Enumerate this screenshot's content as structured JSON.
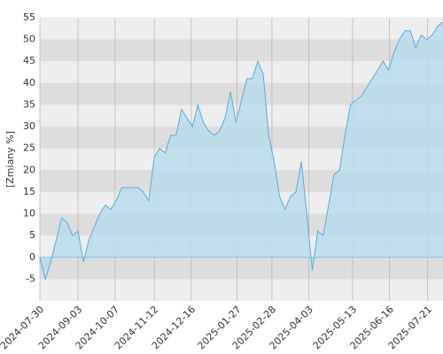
{
  "chart_data": {
    "type": "area",
    "y_label": "[Zmiany %]",
    "color": "#5aaae0",
    "fill": "#b7dcec",
    "band_colors": [
      "#eeeeee",
      "#dddddd"
    ],
    "x": [
      "2024-07-30",
      "2024-08-04",
      "2024-08-09",
      "2024-08-14",
      "2024-08-19",
      "2024-08-24",
      "2024-08-29",
      "2024-09-03",
      "2024-09-08",
      "2024-09-13",
      "2024-09-18",
      "2024-09-23",
      "2024-09-28",
      "2024-10-03",
      "2024-10-08",
      "2024-10-13",
      "2024-10-18",
      "2024-10-23",
      "2024-10-28",
      "2024-11-02",
      "2024-11-07",
      "2024-11-12",
      "2024-11-17",
      "2024-11-22",
      "2024-11-27",
      "2024-12-02",
      "2024-12-07",
      "2024-12-12",
      "2024-12-17",
      "2024-12-22",
      "2024-12-27",
      "2025-01-01",
      "2025-01-06",
      "2025-01-11",
      "2025-01-16",
      "2025-01-21",
      "2025-01-26",
      "2025-01-31",
      "2025-02-05",
      "2025-02-10",
      "2025-02-15",
      "2025-02-20",
      "2025-02-25",
      "2025-03-02",
      "2025-03-07",
      "2025-03-12",
      "2025-03-17",
      "2025-03-22",
      "2025-03-27",
      "2025-04-01",
      "2025-04-06",
      "2025-04-11",
      "2025-04-16",
      "2025-04-21",
      "2025-04-26",
      "2025-05-01",
      "2025-05-06",
      "2025-05-11",
      "2025-05-16",
      "2025-05-21",
      "2025-05-26",
      "2025-05-31",
      "2025-06-05",
      "2025-06-10",
      "2025-06-15",
      "2025-06-20",
      "2025-06-25",
      "2025-06-30",
      "2025-07-05",
      "2025-07-10",
      "2025-07-15",
      "2025-07-20",
      "2025-07-25",
      "2025-07-30",
      "2025-08-04"
    ],
    "values": [
      0,
      -5,
      -1,
      4,
      9,
      8,
      5,
      6,
      -1,
      4,
      7,
      10,
      12,
      11,
      13,
      16,
      16,
      16,
      16,
      15,
      13,
      23,
      25,
      24,
      28,
      28,
      34,
      32,
      30,
      35,
      31,
      29,
      28,
      29,
      32,
      38,
      31,
      36,
      41,
      41,
      45,
      42,
      28,
      22,
      14,
      11,
      14,
      15,
      22,
      10,
      -3,
      6,
      5,
      12,
      19,
      20,
      28,
      35,
      36,
      37,
      39,
      41,
      43,
      45,
      43,
      47,
      50,
      52,
      52,
      48,
      51,
      50,
      51,
      53,
      54
    ],
    "xlim": [
      "2024-07-30",
      "2025-08-04"
    ],
    "xticks": [
      "2024-07-30",
      "2024-09-03",
      "2024-10-07",
      "2024-11-12",
      "2024-12-16",
      "2025-01-27",
      "2025-02-28",
      "2025-04-03",
      "2025-05-13",
      "2025-06-16",
      "2025-07-21"
    ],
    "ylim": [
      -10,
      55
    ],
    "yticks": [
      -5,
      0,
      5,
      10,
      15,
      20,
      25,
      30,
      35,
      40,
      45,
      50,
      55
    ],
    "grid": true
  }
}
